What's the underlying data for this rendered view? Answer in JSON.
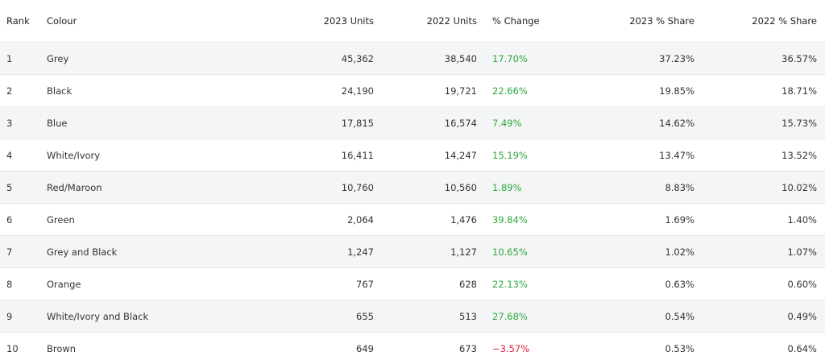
{
  "table": {
    "header": [
      "Rank",
      "Colour",
      "2023 Units",
      "2022 Units",
      "% Change",
      "2023 % Share",
      "2022 % Share"
    ],
    "rows": [
      [
        "1",
        "Grey",
        "45,362",
        "38,540",
        "17.70%",
        "37.23%",
        "36.57%"
      ],
      [
        "2",
        "Black",
        "24,190",
        "19,721",
        "22.66%",
        "19.85%",
        "18.71%"
      ],
      [
        "3",
        "Blue",
        "17,815",
        "16,574",
        "7.49%",
        "14.62%",
        "15.73%"
      ],
      [
        "4",
        "White/Ivory",
        "16,411",
        "14,247",
        "15.19%",
        "13.47%",
        "13.52%"
      ],
      [
        "5",
        "Red/Maroon",
        "10,760",
        "10,560",
        "1.89%",
        "8.83%",
        "10.02%"
      ],
      [
        "6",
        "Green",
        "2,064",
        "1,476",
        "39.84%",
        "1.69%",
        "1.40%"
      ],
      [
        "7",
        "Grey and Black",
        "1,247",
        "1,127",
        "10.65%",
        "1.02%",
        "1.07%"
      ],
      [
        "8",
        "Orange",
        "767",
        "628",
        "22.13%",
        "0.63%",
        "0.60%"
      ],
      [
        "9",
        "White/Ivory and Black",
        "655",
        "513",
        "27.68%",
        "0.54%",
        "0.49%"
      ],
      [
        "10",
        "Brown",
        "649",
        "673",
        "−3.57%",
        "0.53%",
        "0.64%"
      ]
    ],
    "positive_color": "#2ea83a",
    "negative_color": "#d9263a",
    "stripe_color": "#f4f5f7"
  }
}
